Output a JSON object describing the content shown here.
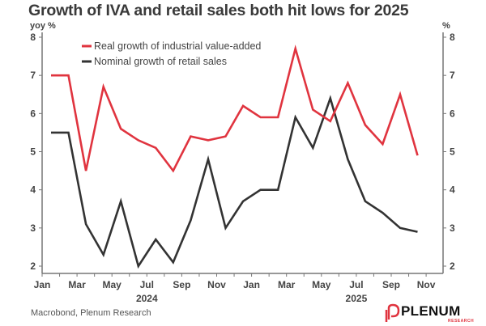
{
  "chart_data": {
    "type": "line",
    "title": "Growth of IVA and retail sales both hit lows for 2025",
    "left_axis_label": "yoy %",
    "right_axis_label": "%",
    "ylim": [
      2,
      8
    ],
    "yticks": [
      2,
      3,
      4,
      5,
      6,
      7,
      8
    ],
    "x_tick_labels": [
      "Jan",
      "Mar",
      "May",
      "Jul",
      "Sep",
      "Nov",
      "Jan",
      "Mar",
      "May",
      "Jul",
      "Sep",
      "Nov"
    ],
    "year_labels": [
      "2024",
      "2025"
    ],
    "x": [
      "2024-01",
      "2024-02",
      "2024-03",
      "2024-04",
      "2024-05",
      "2024-06",
      "2024-07",
      "2024-08",
      "2024-09",
      "2024-10",
      "2024-11",
      "2024-12",
      "2025-01",
      "2025-02",
      "2025-03",
      "2025-04",
      "2025-05",
      "2025-06",
      "2025-07",
      "2025-08",
      "2025-09",
      "2025-10"
    ],
    "series": [
      {
        "name": "Real growth of industrial value-added",
        "color": "#e0343f",
        "values": [
          7.0,
          7.0,
          4.5,
          6.7,
          5.6,
          5.3,
          5.1,
          4.5,
          5.4,
          5.3,
          5.4,
          6.2,
          5.9,
          5.9,
          7.7,
          6.1,
          5.8,
          6.8,
          5.7,
          5.2,
          6.5,
          4.9
        ]
      },
      {
        "name": "Nominal growth of retail sales",
        "color": "#333333",
        "values": [
          5.5,
          5.5,
          3.1,
          2.3,
          3.7,
          2.0,
          2.7,
          2.1,
          3.2,
          4.8,
          3.0,
          3.7,
          4.0,
          4.0,
          5.9,
          5.1,
          6.4,
          4.8,
          3.7,
          3.4,
          3.0,
          2.9
        ]
      }
    ],
    "legend_position": "top-center",
    "grid": false
  },
  "footer": {
    "source": "Macrobond, Plenum Research",
    "logo_text": "PLENUM",
    "logo_subtext": "RESEARCH"
  }
}
